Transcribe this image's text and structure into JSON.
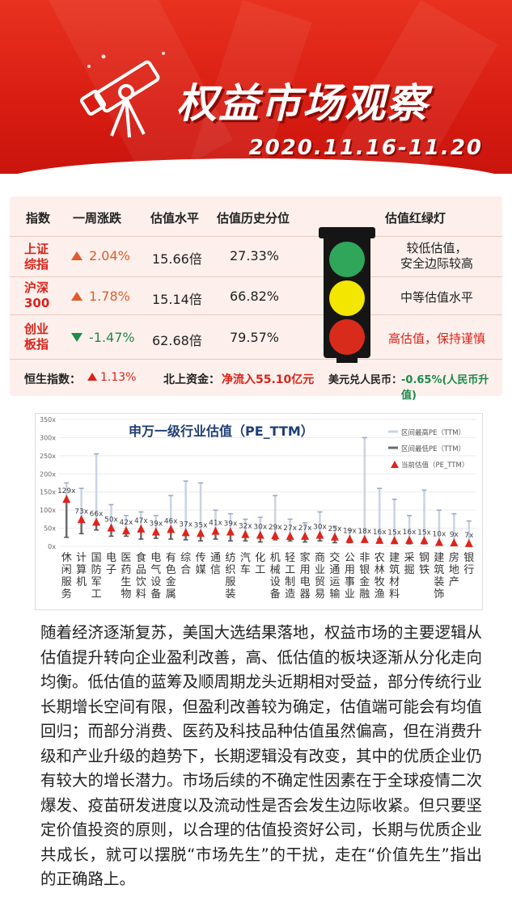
{
  "header": {
    "title": "权益市场观察",
    "date_range": "2020.11.16-11.20"
  },
  "colors": {
    "brand_red": "#d81c12",
    "up": "#e05a2a",
    "down": "#1d8a4a",
    "lamp_green": "#2fa65a",
    "lamp_yellow": "#f3e600",
    "lamp_red": "#d92b1c",
    "current_pe_marker": "#e0231b",
    "range_line_high": "#c9d3e6",
    "range_line_low": "#6b6b6b"
  },
  "market": {
    "headers": {
      "index": "指数",
      "weekly_change": "一周涨跌",
      "valuation": "估值水平",
      "percentile": "估值历史分位",
      "traffic_light": "估值红绿灯"
    },
    "rows": [
      {
        "name_line1": "上证",
        "name_line2": "综指",
        "direction": "up",
        "change": "2.04%",
        "pe": "15.66倍",
        "percentile": "27.33%",
        "signal": "green",
        "comment_line1": "较低估值，",
        "comment_line2": "安全边际较高"
      },
      {
        "name_line1": "沪深",
        "name_line2": "300",
        "direction": "up",
        "change": "1.78%",
        "pe": "15.14倍",
        "percentile": "66.82%",
        "signal": "yellow",
        "comment_line1": "中等估值水平",
        "comment_line2": ""
      },
      {
        "name_line1": "创业",
        "name_line2": "板指",
        "direction": "down",
        "change": "-1.47%",
        "pe": "62.68倍",
        "percentile": "79.57%",
        "signal": "red",
        "comment_line1": "高估值，保持谨慎",
        "comment_line2": ""
      }
    ],
    "footer": {
      "hsi_label": "恒生指数：",
      "hsi_value": "1.13%",
      "northbound_label": "北上资金：",
      "northbound_value": "净流入55.10亿元",
      "usdcny_label": "美元兑人民币：",
      "usdcny_value": "-0.65%(人民币升值)"
    }
  },
  "chart_data": {
    "type": "scatter",
    "title": "申万一级行业估值（PE_TTM）",
    "ylim": [
      0,
      350
    ],
    "y_ticks": [
      "0x",
      "50x",
      "100x",
      "150x",
      "200x",
      "250x",
      "300x",
      "350x"
    ],
    "legend": [
      "区间最高PE（TTM）",
      "区间最低PE（TTM）",
      "当前估值（PE_TTM）"
    ],
    "legend_position": "top-right",
    "categories": [
      "休闲服务",
      "计算机",
      "国防军工",
      "电子",
      "医药生物",
      "食品饮料",
      "电气设备",
      "有色金属",
      "综合",
      "传媒",
      "通信",
      "纺织服装",
      "汽车",
      "化工",
      "机械设备",
      "轻工制造",
      "家用电器",
      "商业贸易",
      "交通运输",
      "公用事业",
      "非银金融",
      "农林牧渔",
      "建筑材料",
      "采掘",
      "钢铁",
      "建筑装饰",
      "房地产",
      "银行"
    ],
    "current_labels": [
      "129x",
      "73x",
      "66x",
      "50x",
      "42x",
      "47x",
      "39x",
      "46x",
      "37x",
      "35x",
      "41x",
      "39x",
      "32x",
      "30x",
      "29x",
      "27x",
      "27x",
      "30x",
      "25x",
      "19x",
      "18x",
      "16x",
      "15x",
      "16x",
      "15x",
      "10x",
      "9x",
      "7x"
    ],
    "current_pe": [
      129,
      73,
      66,
      50,
      42,
      47,
      39,
      46,
      37,
      35,
      41,
      39,
      32,
      30,
      29,
      27,
      27,
      30,
      25,
      19,
      18,
      16,
      15,
      16,
      15,
      10,
      9,
      7
    ],
    "max_pe": [
      175,
      160,
      255,
      115,
      85,
      95,
      85,
      140,
      180,
      175,
      100,
      90,
      75,
      80,
      140,
      75,
      65,
      95,
      55,
      45,
      300,
      160,
      130,
      85,
      155,
      100,
      90,
      70
    ],
    "min_pe": [
      25,
      35,
      45,
      28,
      28,
      20,
      22,
      20,
      18,
      15,
      20,
      15,
      15,
      12,
      18,
      15,
      12,
      15,
      10,
      10,
      12,
      20,
      8,
      7,
      7,
      7,
      5,
      4
    ]
  },
  "paragraph": "随着经济逐渐复苏，美国大选结果落地，权益市场的主要逻辑从估值提升转向企业盈利改善，高、低估值的板块逐渐从分化走向均衡。低估值的蓝筹及顺周期龙头近期相对受益，部分传统行业长期增长空间有限，但盈利改善较为确定，估值端可能会有均值回归；而部分消费、医药及科技品种估值虽然偏高，但在消费升级和产业升级的趋势下，长期逻辑没有改变，其中的优质企业仍有较大的增长潜力。市场后续的不确定性因素在于全球疫情二次爆发、疫苗研发进度以及流动性是否会发生边际收紧。但只要坚定价值投资的原则，以合理的估值投资好公司，长期与优质企业共成长，就可以摆脱“市场先生”的干扰，走在“价值先生”指出的正确路上。"
}
